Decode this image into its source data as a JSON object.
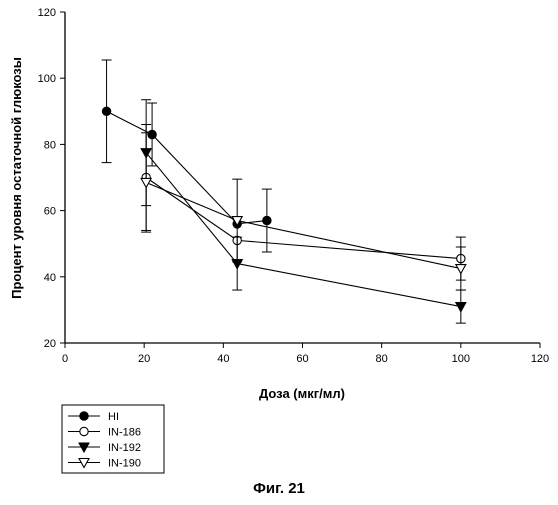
{
  "caption": "Фиг. 21",
  "chart_data": {
    "type": "line",
    "xlabel": "Доза (мкг/мл)",
    "ylabel": "Процент уровня остаточной глюкозы",
    "xlim": [
      0,
      120
    ],
    "ylim": [
      20,
      120
    ],
    "xticks": [
      "0",
      "20",
      "40",
      "60",
      "80",
      "100",
      "120"
    ],
    "yticks": [
      "20",
      "40",
      "60",
      "80",
      "100",
      "120"
    ],
    "grid": false,
    "legend_position": "below plot, bottom-left",
    "series": [
      {
        "name": "HI",
        "marker": "circle-filled",
        "x": [
          10.5,
          22,
          43.5,
          51,
          100
        ],
        "y": [
          90,
          83,
          56,
          57,
          null
        ],
        "err": [
          15.5,
          9.5,
          0,
          9.5,
          0
        ]
      },
      {
        "name": "IN-186",
        "marker": "circle-open",
        "x": [
          20.5,
          43.5,
          100
        ],
        "y": [
          70,
          51,
          45.5
        ],
        "err": [
          16,
          0,
          6.5
        ]
      },
      {
        "name": "IN-192",
        "marker": "triangle-down-filled",
        "x": [
          20.5,
          43.5,
          100
        ],
        "y": [
          77.5,
          44,
          31
        ],
        "err": [
          16,
          8,
          5
        ]
      },
      {
        "name": "IN-190",
        "marker": "triangle-down-open",
        "x": [
          20.5,
          43.5,
          100
        ],
        "y": [
          68.5,
          57,
          42.5
        ],
        "err": [
          15,
          12.5,
          6.5
        ]
      }
    ]
  }
}
